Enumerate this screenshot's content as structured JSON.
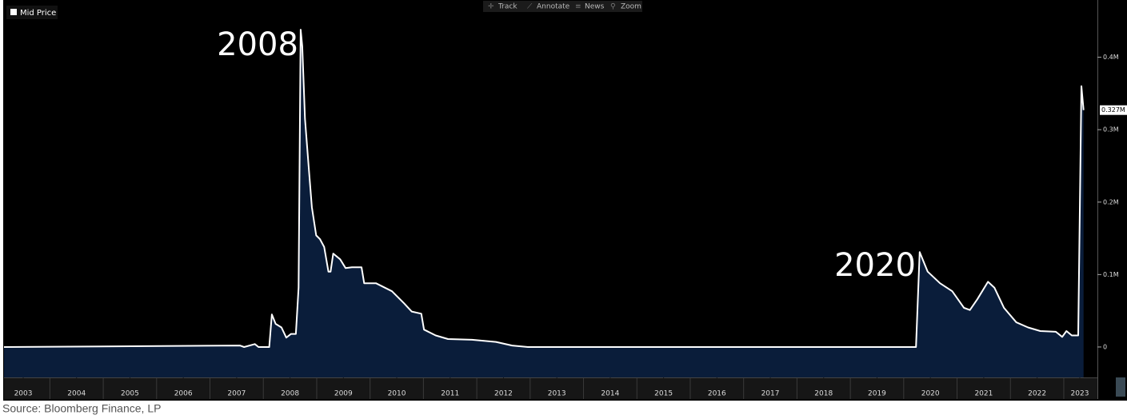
{
  "chart_data": {
    "type": "area",
    "series": [
      {
        "name": "Mid Price",
        "color": "#ffffff",
        "fill": "#0a1d3a",
        "x": [
          2003.14,
          2007.56,
          2007.64,
          2007.84,
          2007.91,
          2008.11,
          2008.16,
          2008.23,
          2008.34,
          2008.43,
          2008.52,
          2008.61,
          2008.66,
          2008.7,
          2008.73,
          2008.78,
          2008.85,
          2008.91,
          2008.99,
          2009.06,
          2009.14,
          2009.22,
          2009.26,
          2009.31,
          2009.44,
          2009.54,
          2009.66,
          2009.84,
          2009.89,
          2010.11,
          2010.41,
          2010.64,
          2010.78,
          2010.96,
          2011.01,
          2011.23,
          2011.46,
          2011.91,
          2012.36,
          2012.66,
          2012.96,
          2020.23,
          2020.3,
          2020.45,
          2020.68,
          2020.91,
          2021.13,
          2021.24,
          2021.38,
          2021.58,
          2021.7,
          2021.88,
          2022.11,
          2022.33,
          2022.56,
          2022.85,
          2022.97,
          2023.05,
          2023.15,
          2023.27,
          2023.33,
          2023.37
        ],
        "values": [
          0,
          2000,
          0,
          4000,
          0,
          0,
          45000,
          32000,
          27000,
          13000,
          18000,
          18000,
          82000,
          438000,
          415000,
          315000,
          249000,
          193000,
          154000,
          149000,
          138000,
          104000,
          104000,
          129000,
          121000,
          109000,
          110000,
          110000,
          88000,
          88000,
          77000,
          60000,
          49000,
          46000,
          24000,
          16000,
          11000,
          10000,
          7000,
          2000,
          0,
          0,
          131000,
          104000,
          88000,
          77000,
          54000,
          51000,
          66000,
          90000,
          82000,
          54000,
          34000,
          27000,
          22000,
          21000,
          14000,
          22000,
          16000,
          16000,
          360000,
          327000
        ],
        "value_labels": [
          null,
          null,
          null,
          null,
          null,
          null,
          null,
          null,
          null,
          null,
          null,
          null,
          null,
          null,
          null,
          null,
          null,
          null,
          null,
          null,
          null,
          null,
          null,
          null,
          null,
          null,
          null,
          null,
          null,
          null,
          null,
          null,
          null,
          null,
          null,
          null,
          null,
          null,
          null,
          null,
          null,
          null,
          null,
          null,
          null,
          null,
          null,
          null,
          null,
          null,
          null,
          null,
          null,
          null,
          null,
          null,
          null,
          null,
          null,
          null,
          null,
          "0.327M"
        ]
      }
    ],
    "xlim": [
      2003.14,
      2023.63
    ],
    "xticks": [
      {
        "value": 2003.5,
        "label": "2003"
      },
      {
        "value": 2004.5,
        "label": "2004"
      },
      {
        "value": 2005.5,
        "label": "2005"
      },
      {
        "value": 2006.5,
        "label": "2006"
      },
      {
        "value": 2007.5,
        "label": "2007"
      },
      {
        "value": 2008.5,
        "label": "2008"
      },
      {
        "value": 2009.5,
        "label": "2009"
      },
      {
        "value": 2010.5,
        "label": "2010"
      },
      {
        "value": 2011.5,
        "label": "2011"
      },
      {
        "value": 2012.5,
        "label": "2012"
      },
      {
        "value": 2013.5,
        "label": "2013"
      },
      {
        "value": 2014.5,
        "label": "2014"
      },
      {
        "value": 2015.5,
        "label": "2015"
      },
      {
        "value": 2016.5,
        "label": "2016"
      },
      {
        "value": 2017.5,
        "label": "2017"
      },
      {
        "value": 2018.5,
        "label": "2018"
      },
      {
        "value": 2019.5,
        "label": "2019"
      },
      {
        "value": 2020.5,
        "label": "2020"
      },
      {
        "value": 2021.5,
        "label": "2021"
      },
      {
        "value": 2022.5,
        "label": "2022"
      },
      {
        "value": 2023.3,
        "label": "2023"
      }
    ],
    "ylim": [
      -42000,
      479000
    ],
    "yticks": [
      0,
      {
        "value": 100000,
        "label": "0.1M"
      },
      {
        "value": 200000,
        "label": "0.2M"
      },
      {
        "value": 300000,
        "label": "0.3M"
      },
      {
        "value": 400000,
        "label": "0.4M"
      }
    ],
    "y_axis_side": "right",
    "legend": "top-left",
    "annotations": [
      {
        "text": "2008"
      },
      {
        "text": "2020"
      }
    ],
    "toolbar": [
      "Track",
      "Annotate",
      "News",
      "Zoom"
    ],
    "source": "Source: Bloomberg Finance, LP"
  }
}
